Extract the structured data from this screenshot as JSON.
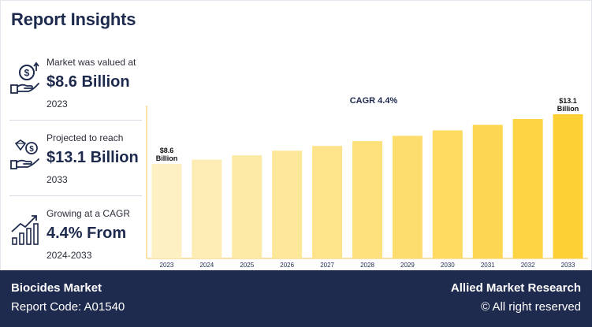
{
  "header": {
    "title": "Report Insights"
  },
  "stats": [
    {
      "caption": "Market was valued at",
      "value": "$8.6 Billion",
      "sub": "2023",
      "icon": "money-hand-icon"
    },
    {
      "caption": "Projected to reach",
      "value": "$13.1 Billion",
      "sub": "2033",
      "icon": "diamond-hand-icon"
    },
    {
      "caption": "Growing at a CAGR",
      "value": "4.4% From",
      "sub": "2024-2033",
      "icon": "growth-chart-icon"
    }
  ],
  "chart_data": {
    "type": "bar",
    "annotation": "CAGR 4.4%",
    "categories": [
      "2023",
      "2024",
      "2025",
      "2026",
      "2027",
      "2028",
      "2029",
      "2030",
      "2031",
      "2032",
      "2033"
    ],
    "values": [
      8.6,
      8.98,
      9.37,
      9.79,
      10.22,
      10.67,
      11.14,
      11.63,
      12.14,
      12.67,
      13.1
    ],
    "data_labels": [
      {
        "index": 0,
        "lines": [
          "$8.6",
          "Billion"
        ]
      },
      {
        "index": 10,
        "lines": [
          "$13.1",
          "Billion"
        ]
      }
    ],
    "color_start": "#fdf0c2",
    "color_end": "#fdd136",
    "axis_color": "#f5d98a"
  },
  "footer": {
    "market": "Biocides Market",
    "report_code": "Report Code: A01540",
    "brand": "Allied Market Research",
    "rights": "© All right reserved"
  },
  "colors": {
    "navy": "#1e2a4e",
    "text_dark": "#1d2a4d"
  }
}
